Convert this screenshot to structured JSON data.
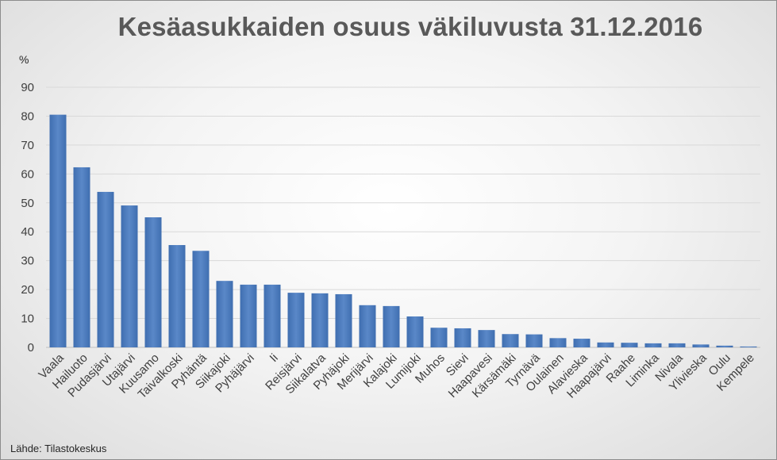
{
  "chart_data": {
    "type": "bar",
    "title": "Kesäasukkaiden osuus väkiluvusta 31.12.2016",
    "ylabel": "%",
    "ylim": [
      0,
      90
    ],
    "yticks": [
      0,
      10,
      20,
      30,
      40,
      50,
      60,
      70,
      80,
      90
    ],
    "grid": true,
    "categories": [
      "Vaala",
      "Hailuoto",
      "Pudasjärvi",
      "Utajärvi",
      "Kuusamo",
      "Taivalkoski",
      "Pyhäntä",
      "Siikajoki",
      "Pyhäjärvi",
      "Ii",
      "Reisjärvi",
      "Siikalatva",
      "Pyhäjoki",
      "Merijärvi",
      "Kalajoki",
      "Lumijoki",
      "Muhos",
      "Sievi",
      "Haapavesi",
      "Kärsämäki",
      "Tyrnävä",
      "Oulainen",
      "Alavieska",
      "Haapajärvi",
      "Raahe",
      "Liminka",
      "Nivala",
      "Ylivieska",
      "Oulu",
      "Kempele"
    ],
    "values": [
      80.5,
      62.3,
      53.8,
      49.1,
      45.0,
      35.4,
      33.4,
      23.0,
      21.7,
      21.7,
      18.9,
      18.7,
      18.4,
      14.6,
      14.3,
      10.7,
      6.8,
      6.6,
      6.0,
      4.6,
      4.5,
      3.2,
      3.0,
      1.7,
      1.6,
      1.4,
      1.4,
      1.0,
      0.6,
      0.3
    ],
    "bar_color": "#4a78b8",
    "source": "Lähde: Tilastokeskus"
  }
}
